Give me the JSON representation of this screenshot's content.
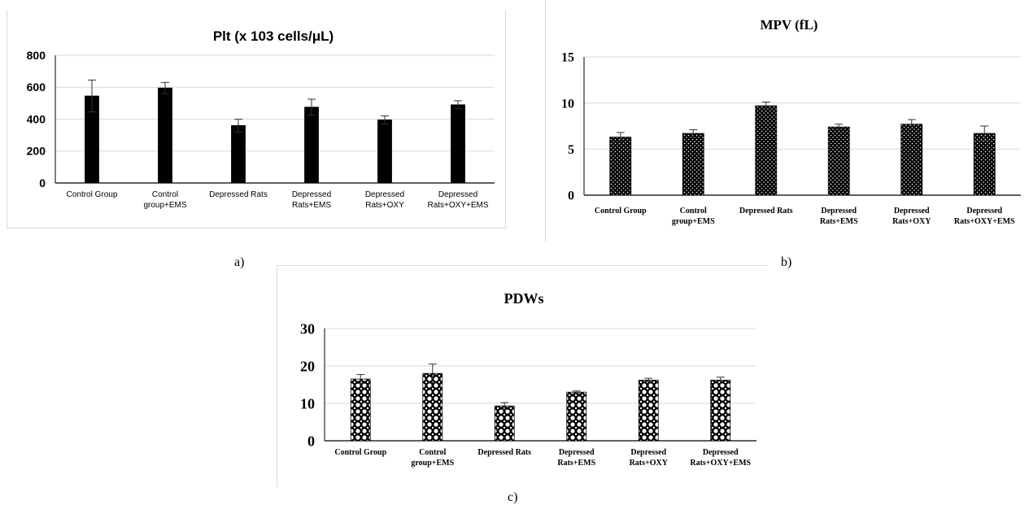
{
  "captions": {
    "a": "a)",
    "b": "b)",
    "c": "c)"
  },
  "chart_data": [
    {
      "type": "bar",
      "title": "Plt (x 103 cells/μL)",
      "categories": [
        [
          "Control Group"
        ],
        [
          "Control",
          "group+EMS"
        ],
        [
          "Depressed Rats"
        ],
        [
          "Depressed",
          "Rats+EMS"
        ],
        [
          "Depressed",
          "Rats+OXY"
        ],
        [
          "Depressed",
          "Rats+OXY+EMS"
        ]
      ],
      "values": [
        545,
        595,
        360,
        475,
        395,
        490
      ],
      "errors": [
        100,
        35,
        40,
        50,
        25,
        25
      ],
      "ylim": [
        0,
        800
      ],
      "yticks": [
        "0",
        "200",
        "400",
        "600",
        "800"
      ],
      "fill": "#000000",
      "pattern": "solid",
      "grid": true
    },
    {
      "type": "bar",
      "title": "MPV (fL)",
      "categories": [
        [
          "Control Group"
        ],
        [
          "Control",
          "group+EMS"
        ],
        [
          "Depressed Rats"
        ],
        [
          "Depressed",
          "Rats+EMS"
        ],
        [
          "Depressed",
          "Rats+OXY"
        ],
        [
          "Depressed",
          "Rats+OXY+EMS"
        ]
      ],
      "values": [
        6.3,
        6.7,
        9.7,
        7.4,
        7.7,
        6.7
      ],
      "errors": [
        0.5,
        0.4,
        0.4,
        0.3,
        0.5,
        0.8
      ],
      "ylim": [
        0,
        15
      ],
      "yticks": [
        "0",
        "5",
        "10",
        "15"
      ],
      "fill": "#000000",
      "pattern": "dots",
      "grid": true
    },
    {
      "type": "bar",
      "title": "PDWs",
      "categories": [
        [
          "Control Group"
        ],
        [
          "Control",
          "group+EMS"
        ],
        [
          "Depressed Rats"
        ],
        [
          "Depressed",
          "Rats+EMS"
        ],
        [
          "Depressed",
          "Rats+OXY"
        ],
        [
          "Depressed",
          "Rats+OXY+EMS"
        ]
      ],
      "values": [
        16.5,
        18,
        9.3,
        13,
        16.2,
        16.2
      ],
      "errors": [
        1.2,
        2.5,
        0.9,
        0.3,
        0.5,
        0.8
      ],
      "ylim": [
        0,
        30
      ],
      "yticks": [
        "0",
        "10",
        "20",
        "30"
      ],
      "fill": "#000000",
      "pattern": "circles",
      "grid": true
    }
  ]
}
